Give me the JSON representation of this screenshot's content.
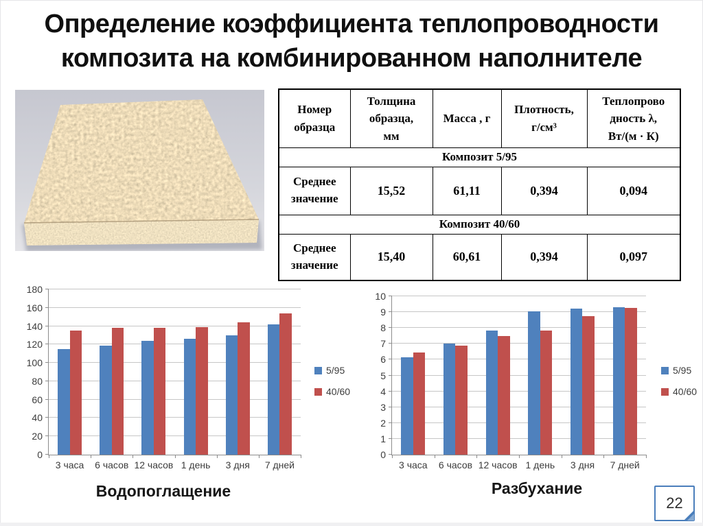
{
  "slide": {
    "title_line1": "Определение коэффициента теплопроводности",
    "title_line2": "композита на комбинированном наполнителе",
    "page_number": "22",
    "accent_color": "#4a7ebb"
  },
  "table": {
    "headers": [
      "Номер\nобразца",
      "Толщина\nобразца,\nмм",
      "Масса , г",
      "Плотность,\nг/см³",
      "Теплопрово\nдность λ,\nВт/(м · К)"
    ],
    "sections": [
      {
        "band": "Композит 5/95",
        "row_label": "Среднее\nзначение",
        "values": [
          "15,52",
          "61,11",
          "0,394",
          "0,094"
        ]
      },
      {
        "band": "Композит 40/60",
        "row_label": "Среднее\nзначение",
        "values": [
          "15,40",
          "60,61",
          "0,394",
          "0,097"
        ]
      }
    ]
  },
  "chart_data": [
    {
      "type": "bar",
      "title": "Водопоглащение",
      "categories": [
        "3 часа",
        "6 часов",
        "12 часов",
        "1 день",
        "3 дня",
        "7 дней"
      ],
      "series": [
        {
          "name": "5/95",
          "color": "#4F81BD",
          "values": [
            115,
            119,
            124,
            126,
            130,
            142
          ]
        },
        {
          "name": "40/60",
          "color": "#C0504D",
          "values": [
            135,
            138,
            138,
            139,
            144,
            154
          ]
        }
      ],
      "xlabel": "",
      "ylabel": "",
      "ylim": [
        0,
        180
      ],
      "ytick_step": 20,
      "grid": true,
      "legend_position": "right"
    },
    {
      "type": "bar",
      "title": "Разбухание",
      "categories": [
        "3 часа",
        "6 часов",
        "12 часов",
        "1 день",
        "3 дня",
        "7 дней"
      ],
      "series": [
        {
          "name": "5/95",
          "color": "#4F81BD",
          "values": [
            6.15,
            7.0,
            7.85,
            9.05,
            9.2,
            9.3
          ]
        },
        {
          "name": "40/60",
          "color": "#C0504D",
          "values": [
            6.45,
            6.9,
            7.5,
            7.85,
            8.75,
            9.25
          ]
        }
      ],
      "xlabel": "",
      "ylabel": "",
      "ylim": [
        0,
        10
      ],
      "ytick_step": 1,
      "grid": true,
      "legend_position": "right"
    }
  ]
}
